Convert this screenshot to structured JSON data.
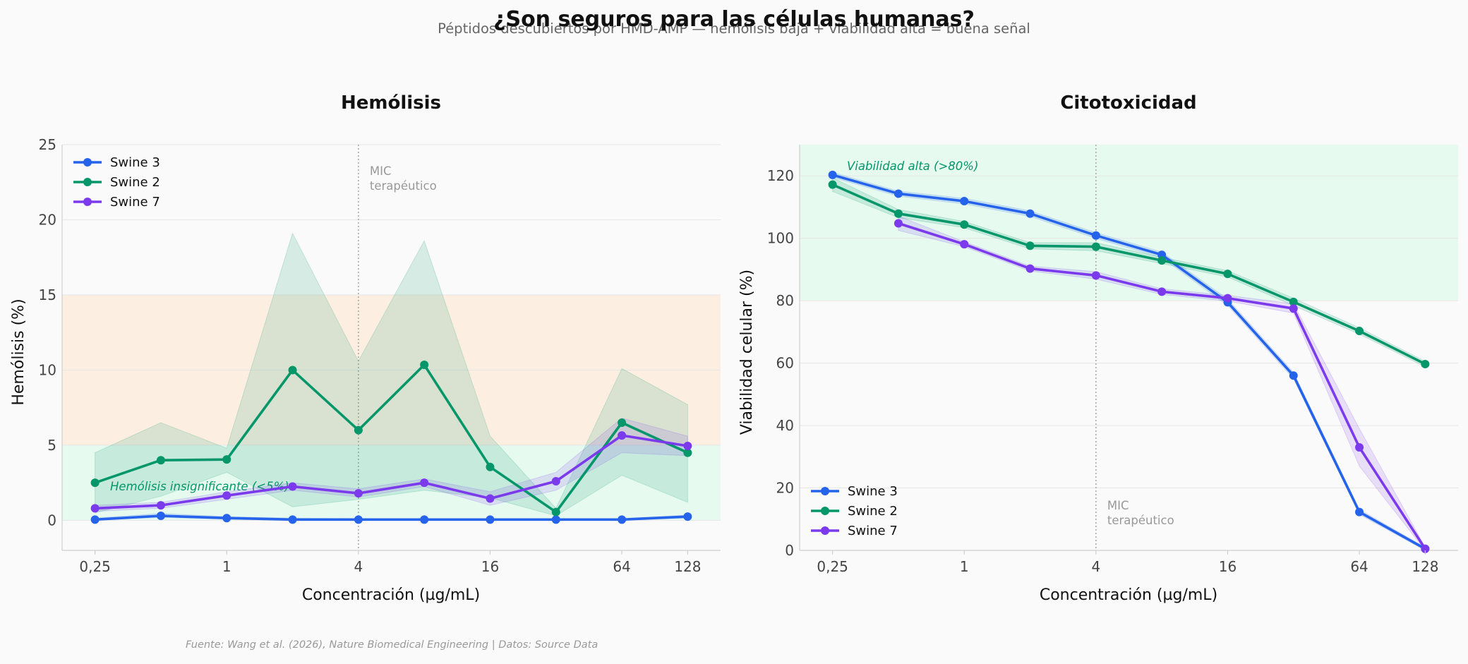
{
  "title": "¿Son seguros para las células humanas?",
  "subtitle": "Péptidos descubiertos por HMD-AMP — hemólisis baja + viabilidad alta = buena señal",
  "source": "Fuente: Wang et al. (2026), Nature Biomedical Engineering | Datos: Source Data",
  "colors": {
    "swine3": "#2563eb",
    "swine2": "#059669",
    "swine7": "#7c3aed",
    "safe_band": "#d1fae5",
    "warn_band": "#fde6cc",
    "annot": "#059669"
  },
  "chart_data": [
    {
      "type": "line",
      "title": "Hemólisis",
      "xlabel": "Concentración (µg/mL)",
      "ylabel": "Hemólisis (%)",
      "xscale": "log2",
      "xlim": [
        0.1768,
        181
      ],
      "ylim": [
        -2,
        25
      ],
      "xticks": [
        0.25,
        1,
        4,
        16,
        64,
        128
      ],
      "xtick_labels": [
        "0,25",
        "1",
        "4",
        "16",
        "64",
        "128"
      ],
      "yticks": [
        0,
        5,
        10,
        15,
        20,
        25
      ],
      "ytick_labels": [
        "0",
        "5",
        "10",
        "15",
        "20",
        "25"
      ],
      "legend_position": "top-left",
      "bands": [
        {
          "y0": 0,
          "y1": 5,
          "color": "safe",
          "label": "Hemólisis insignificante (<5%)"
        },
        {
          "y0": 5,
          "y1": 15,
          "color": "warn",
          "label": ""
        }
      ],
      "vline": {
        "x": 4,
        "label_lines": [
          "MIC",
          "terapéutico"
        ]
      },
      "series": [
        {
          "name": "Swine 3",
          "color": "swine3",
          "x": [
            0.25,
            0.5,
            1,
            2,
            4,
            8,
            16,
            32,
            64,
            128
          ],
          "y": [
            0.05,
            0.3,
            0.15,
            0.05,
            0.05,
            0.05,
            0.05,
            0.05,
            0.05,
            0.25
          ],
          "lower": [
            0,
            0.2,
            0.08,
            0,
            0,
            0,
            0,
            0,
            0,
            0.15
          ],
          "upper": [
            0.15,
            0.45,
            0.25,
            0.15,
            0.12,
            0.1,
            0.1,
            0.1,
            0.12,
            0.35
          ]
        },
        {
          "name": "Swine 2",
          "color": "swine2",
          "x": [
            0.25,
            0.5,
            1,
            2,
            4,
            8,
            16,
            32,
            64,
            128
          ],
          "y": [
            2.5,
            4.0,
            4.05,
            10.0,
            6.0,
            10.35,
            3.55,
            0.55,
            6.5,
            4.5
          ],
          "lower": [
            0.5,
            1.6,
            3.2,
            0.9,
            1.4,
            2.0,
            1.5,
            0.3,
            3.0,
            1.2
          ],
          "upper": [
            4.5,
            6.5,
            4.8,
            19.1,
            10.6,
            18.6,
            5.6,
            0.8,
            10.1,
            7.7
          ]
        },
        {
          "name": "Swine 7",
          "color": "swine7",
          "x": [
            0.25,
            0.5,
            1,
            2,
            4,
            8,
            16,
            32,
            64,
            128
          ],
          "y": [
            0.8,
            1.0,
            1.65,
            2.25,
            1.8,
            2.5,
            1.45,
            2.6,
            5.65,
            4.95
          ],
          "lower": [
            0.6,
            0.8,
            1.4,
            2.0,
            1.55,
            2.25,
            1.0,
            2.0,
            4.5,
            4.3
          ],
          "upper": [
            1.0,
            1.2,
            1.9,
            2.5,
            2.1,
            2.75,
            1.9,
            3.2,
            6.8,
            5.6
          ]
        }
      ]
    },
    {
      "type": "line",
      "title": "Citotoxicidad",
      "xlabel": "Concentración (µg/mL)",
      "ylabel": "Viabilidad celular (%)",
      "xscale": "log2",
      "xlim": [
        0.1768,
        181
      ],
      "ylim": [
        0,
        130
      ],
      "xticks": [
        0.25,
        1,
        4,
        16,
        64,
        128
      ],
      "xtick_labels": [
        "0,25",
        "1",
        "4",
        "16",
        "64",
        "128"
      ],
      "yticks": [
        0,
        20,
        40,
        60,
        80,
        100,
        120
      ],
      "ytick_labels": [
        "0",
        "20",
        "40",
        "60",
        "80",
        "100",
        "120"
      ],
      "legend_position": "bottom-left",
      "bands": [
        {
          "y0": 80,
          "y1": 130,
          "color": "safe",
          "label": "Viabilidad alta (>80%)"
        }
      ],
      "vline": {
        "x": 4,
        "label_lines": [
          "MIC",
          "terapéutico"
        ]
      },
      "series": [
        {
          "name": "Swine 3",
          "color": "swine3",
          "x": [
            0.25,
            0.5,
            1,
            2,
            4,
            8,
            16,
            32,
            64,
            128
          ],
          "y": [
            120.3,
            114.3,
            111.9,
            107.9,
            100.9,
            94.7,
            79.5,
            56.0,
            12.3,
            0.5
          ],
          "lower": [
            119.5,
            113.5,
            111.0,
            107.0,
            100.0,
            93.8,
            78.5,
            55.0,
            11.5,
            0
          ],
          "upper": [
            121.1,
            115.1,
            112.8,
            108.8,
            101.8,
            95.6,
            80.5,
            57.0,
            13.1,
            1.0
          ]
        },
        {
          "name": "Swine 2",
          "color": "swine2",
          "x": [
            0.25,
            0.5,
            1,
            2,
            4,
            8,
            16,
            32,
            64,
            128
          ],
          "y": [
            117.2,
            107.9,
            104.4,
            97.6,
            97.3,
            92.9,
            88.6,
            79.6,
            70.3,
            59.7
          ],
          "lower": [
            115.0,
            106.6,
            103.4,
            96.6,
            96.0,
            91.9,
            87.6,
            78.4,
            69.3,
            58.8
          ],
          "upper": [
            119.4,
            109.2,
            105.4,
            98.6,
            98.6,
            93.9,
            89.6,
            80.8,
            71.3,
            60.6
          ]
        },
        {
          "name": "Swine 7",
          "color": "swine7",
          "x": [
            0.5,
            1,
            2,
            4,
            8,
            16,
            32,
            64,
            128
          ],
          "y": [
            104.8,
            98.1,
            90.3,
            88.1,
            82.9,
            80.8,
            77.5,
            33.0,
            0.5
          ],
          "lower": [
            102.5,
            97.3,
            89.5,
            86.9,
            82.0,
            79.9,
            76.0,
            27.0,
            0
          ],
          "upper": [
            107.1,
            98.9,
            91.1,
            89.3,
            83.8,
            81.7,
            79.0,
            39.0,
            1.0
          ]
        }
      ]
    }
  ]
}
